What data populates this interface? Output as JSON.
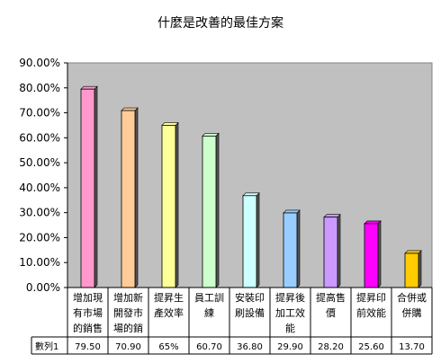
{
  "chart_data": {
    "type": "bar",
    "title": "什麼是改善的最佳方案",
    "ylim": [
      0,
      90
    ],
    "y_ticks": [
      "0.00%",
      "10.00%",
      "20.00%",
      "30.00%",
      "40.00%",
      "50.00%",
      "60.00%",
      "70.00%",
      "80.00%",
      "90.00%"
    ],
    "grid": false,
    "plot_background": "#c0c0c0",
    "categories": [
      [
        "增加現",
        "有市場",
        "的銷售"
      ],
      [
        "增加新",
        "開發市",
        "場的銷"
      ],
      [
        "提昇生",
        "產效率"
      ],
      [
        "員工訓",
        "練"
      ],
      [
        "安裝印",
        "刷設備"
      ],
      [
        "提昇後",
        "加工效",
        "能"
      ],
      [
        "提高售",
        "價"
      ],
      [
        "提昇印",
        "前效能"
      ],
      [
        "合併或",
        "併購"
      ]
    ],
    "series": [
      {
        "name": "數列1",
        "values": [
          79.5,
          70.9,
          65,
          60.7,
          36.8,
          29.9,
          28.2,
          25.6,
          13.7
        ],
        "labels": [
          "79.50",
          "70.90",
          "65%",
          "60.70",
          "36.80",
          "29.90",
          "28.20",
          "25.60",
          "13.70"
        ]
      }
    ],
    "colors": [
      "#ff99cc",
      "#ffcc99",
      "#ffff99",
      "#ccffcc",
      "#ccffff",
      "#99ccff",
      "#cc99ff",
      "#ff00ff",
      "#ffcc00"
    ]
  }
}
